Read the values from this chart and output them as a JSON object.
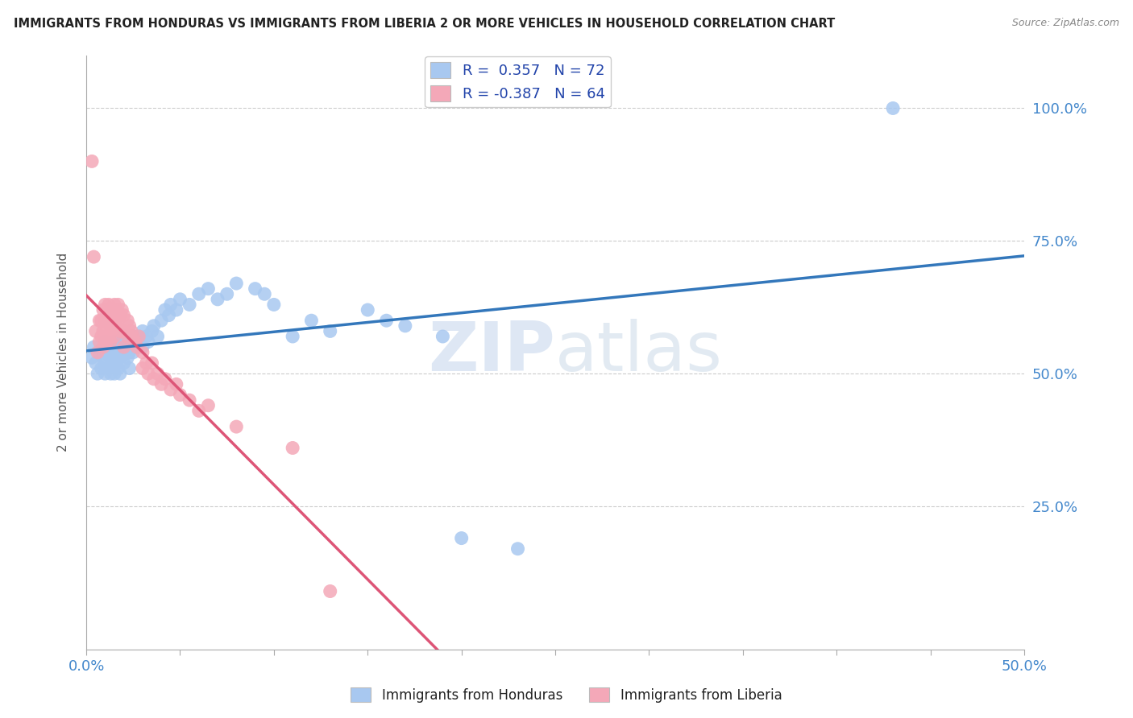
{
  "title": "IMMIGRANTS FROM HONDURAS VS IMMIGRANTS FROM LIBERIA 2 OR MORE VEHICLES IN HOUSEHOLD CORRELATION CHART",
  "source": "Source: ZipAtlas.com",
  "ylabel": "2 or more Vehicles in Household",
  "legend1_label": "R =  0.357   N = 72",
  "legend2_label": "R = -0.387   N = 64",
  "legend_bottom1": "Immigrants from Honduras",
  "legend_bottom2": "Immigrants from Liberia",
  "honduras_color": "#a8c8f0",
  "liberia_color": "#f4a8b8",
  "honduras_line_color": "#3377bb",
  "liberia_line_color": "#dd5577",
  "watermark_zip": "ZIP",
  "watermark_atlas": "atlas",
  "xlim": [
    0.0,
    0.5
  ],
  "ylim": [
    -0.02,
    1.1
  ],
  "honduras_scatter": [
    [
      0.003,
      0.53
    ],
    [
      0.004,
      0.55
    ],
    [
      0.005,
      0.52
    ],
    [
      0.006,
      0.5
    ],
    [
      0.007,
      0.54
    ],
    [
      0.008,
      0.51
    ],
    [
      0.009,
      0.53
    ],
    [
      0.01,
      0.56
    ],
    [
      0.01,
      0.52
    ],
    [
      0.01,
      0.5
    ],
    [
      0.011,
      0.54
    ],
    [
      0.012,
      0.55
    ],
    [
      0.012,
      0.51
    ],
    [
      0.013,
      0.53
    ],
    [
      0.013,
      0.5
    ],
    [
      0.014,
      0.52
    ],
    [
      0.015,
      0.56
    ],
    [
      0.015,
      0.53
    ],
    [
      0.015,
      0.5
    ],
    [
      0.016,
      0.54
    ],
    [
      0.016,
      0.52
    ],
    [
      0.017,
      0.55
    ],
    [
      0.017,
      0.51
    ],
    [
      0.018,
      0.53
    ],
    [
      0.018,
      0.5
    ],
    [
      0.019,
      0.56
    ],
    [
      0.02,
      0.57
    ],
    [
      0.02,
      0.54
    ],
    [
      0.02,
      0.52
    ],
    [
      0.021,
      0.55
    ],
    [
      0.022,
      0.56
    ],
    [
      0.022,
      0.53
    ],
    [
      0.023,
      0.54
    ],
    [
      0.023,
      0.51
    ],
    [
      0.024,
      0.55
    ],
    [
      0.025,
      0.57
    ],
    [
      0.025,
      0.54
    ],
    [
      0.026,
      0.56
    ],
    [
      0.027,
      0.55
    ],
    [
      0.028,
      0.57
    ],
    [
      0.03,
      0.58
    ],
    [
      0.03,
      0.55
    ],
    [
      0.032,
      0.57
    ],
    [
      0.033,
      0.56
    ],
    [
      0.035,
      0.58
    ],
    [
      0.036,
      0.59
    ],
    [
      0.038,
      0.57
    ],
    [
      0.04,
      0.6
    ],
    [
      0.042,
      0.62
    ],
    [
      0.044,
      0.61
    ],
    [
      0.045,
      0.63
    ],
    [
      0.048,
      0.62
    ],
    [
      0.05,
      0.64
    ],
    [
      0.055,
      0.63
    ],
    [
      0.06,
      0.65
    ],
    [
      0.065,
      0.66
    ],
    [
      0.07,
      0.64
    ],
    [
      0.075,
      0.65
    ],
    [
      0.08,
      0.67
    ],
    [
      0.09,
      0.66
    ],
    [
      0.095,
      0.65
    ],
    [
      0.1,
      0.63
    ],
    [
      0.11,
      0.57
    ],
    [
      0.12,
      0.6
    ],
    [
      0.13,
      0.58
    ],
    [
      0.15,
      0.62
    ],
    [
      0.16,
      0.6
    ],
    [
      0.17,
      0.59
    ],
    [
      0.19,
      0.57
    ],
    [
      0.2,
      0.19
    ],
    [
      0.23,
      0.17
    ],
    [
      0.43,
      1.0
    ]
  ],
  "liberia_scatter": [
    [
      0.003,
      0.9
    ],
    [
      0.004,
      0.72
    ],
    [
      0.005,
      0.58
    ],
    [
      0.006,
      0.54
    ],
    [
      0.007,
      0.6
    ],
    [
      0.007,
      0.56
    ],
    [
      0.008,
      0.6
    ],
    [
      0.008,
      0.57
    ],
    [
      0.009,
      0.62
    ],
    [
      0.009,
      0.58
    ],
    [
      0.009,
      0.55
    ],
    [
      0.01,
      0.63
    ],
    [
      0.01,
      0.6
    ],
    [
      0.01,
      0.57
    ],
    [
      0.011,
      0.61
    ],
    [
      0.011,
      0.58
    ],
    [
      0.011,
      0.56
    ],
    [
      0.012,
      0.63
    ],
    [
      0.012,
      0.6
    ],
    [
      0.012,
      0.57
    ],
    [
      0.013,
      0.62
    ],
    [
      0.013,
      0.59
    ],
    [
      0.013,
      0.56
    ],
    [
      0.014,
      0.61
    ],
    [
      0.014,
      0.58
    ],
    [
      0.015,
      0.63
    ],
    [
      0.015,
      0.6
    ],
    [
      0.015,
      0.57
    ],
    [
      0.016,
      0.62
    ],
    [
      0.016,
      0.59
    ],
    [
      0.017,
      0.63
    ],
    [
      0.017,
      0.6
    ],
    [
      0.018,
      0.61
    ],
    [
      0.018,
      0.58
    ],
    [
      0.019,
      0.62
    ],
    [
      0.02,
      0.61
    ],
    [
      0.02,
      0.58
    ],
    [
      0.02,
      0.55
    ],
    [
      0.022,
      0.6
    ],
    [
      0.022,
      0.57
    ],
    [
      0.023,
      0.59
    ],
    [
      0.024,
      0.58
    ],
    [
      0.025,
      0.57
    ],
    [
      0.026,
      0.56
    ],
    [
      0.027,
      0.55
    ],
    [
      0.028,
      0.57
    ],
    [
      0.03,
      0.54
    ],
    [
      0.03,
      0.51
    ],
    [
      0.032,
      0.52
    ],
    [
      0.033,
      0.5
    ],
    [
      0.035,
      0.52
    ],
    [
      0.036,
      0.49
    ],
    [
      0.038,
      0.5
    ],
    [
      0.04,
      0.48
    ],
    [
      0.042,
      0.49
    ],
    [
      0.045,
      0.47
    ],
    [
      0.048,
      0.48
    ],
    [
      0.05,
      0.46
    ],
    [
      0.055,
      0.45
    ],
    [
      0.06,
      0.43
    ],
    [
      0.065,
      0.44
    ],
    [
      0.08,
      0.4
    ],
    [
      0.11,
      0.36
    ],
    [
      0.13,
      0.09
    ]
  ]
}
